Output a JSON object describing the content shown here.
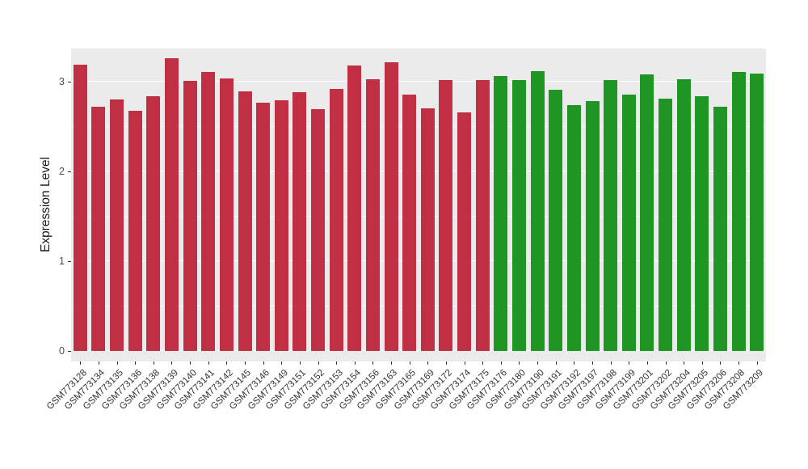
{
  "chart_data": {
    "type": "bar",
    "title": "",
    "xlabel": "",
    "ylabel": "Expression Level",
    "ylim": [
      0,
      3.3
    ],
    "yticks": [
      0,
      1,
      2,
      3
    ],
    "yticks_minor": [
      0.5,
      1.5,
      2.5
    ],
    "grid": true,
    "legend_position": "none",
    "panel_background": "#EBEBEB",
    "gridline_color": "#FFFFFF",
    "group_colors": {
      "red": "#C02F44",
      "green": "#1F9624"
    },
    "categories": [
      "GSM773128",
      "GSM773134",
      "GSM773135",
      "GSM773136",
      "GSM773138",
      "GSM773139",
      "GSM773140",
      "GSM773141",
      "GSM773142",
      "GSM773145",
      "GSM773146",
      "GSM773149",
      "GSM773151",
      "GSM773152",
      "GSM773153",
      "GSM773154",
      "GSM773156",
      "GSM773163",
      "GSM773165",
      "GSM773169",
      "GSM773172",
      "GSM773174",
      "GSM773175",
      "GSM773176",
      "GSM773180",
      "GSM773190",
      "GSM773191",
      "GSM773192",
      "GSM773197",
      "GSM773198",
      "GSM773199",
      "GSM773201",
      "GSM773202",
      "GSM773204",
      "GSM773205",
      "GSM773206",
      "GSM773208",
      "GSM773209"
    ],
    "values": [
      3.19,
      2.72,
      2.8,
      2.68,
      2.84,
      3.26,
      3.01,
      3.11,
      3.04,
      2.89,
      2.77,
      2.79,
      2.88,
      2.69,
      2.92,
      3.18,
      3.03,
      3.22,
      2.86,
      2.7,
      3.02,
      2.66,
      3.02,
      3.06,
      3.02,
      3.12,
      2.91,
      2.74,
      2.78,
      3.02,
      2.86,
      3.08,
      2.81,
      3.03,
      2.84,
      2.72,
      3.11,
      3.09
    ],
    "groups": [
      "red",
      "red",
      "red",
      "red",
      "red",
      "red",
      "red",
      "red",
      "red",
      "red",
      "red",
      "red",
      "red",
      "red",
      "red",
      "red",
      "red",
      "red",
      "red",
      "red",
      "red",
      "red",
      "red",
      "green",
      "green",
      "green",
      "green",
      "green",
      "green",
      "green",
      "green",
      "green",
      "green",
      "green",
      "green",
      "green",
      "green",
      "green"
    ]
  }
}
